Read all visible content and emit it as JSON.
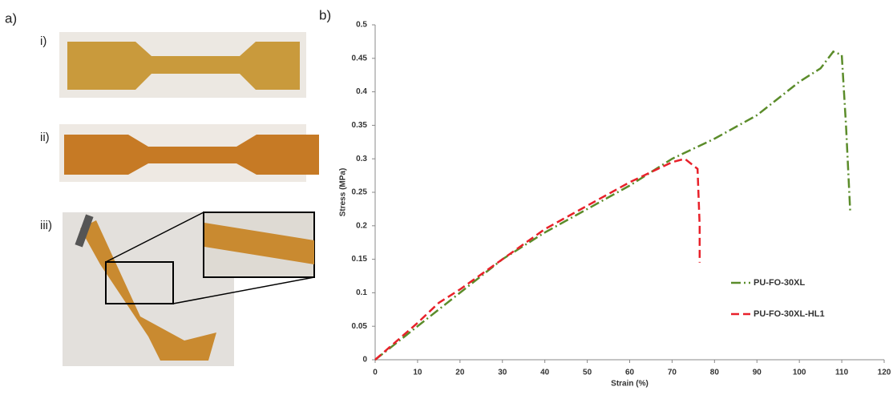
{
  "figure": {
    "panel_a": "a)",
    "panel_b": "b)",
    "sublabels": [
      "i)",
      "ii)",
      "iii)"
    ]
  },
  "chart_data": {
    "type": "line",
    "x_label": "Strain (%)",
    "y_label": "Stress (MPa)",
    "xlim": [
      0,
      120
    ],
    "xticks": [
      0,
      10,
      20,
      30,
      40,
      50,
      60,
      70,
      80,
      90,
      100,
      110,
      120
    ],
    "ylim": [
      0,
      0.5
    ],
    "yticks": [
      0,
      0.05,
      0.1,
      0.15,
      0.2,
      0.25,
      0.3,
      0.35,
      0.4,
      0.45,
      0.5
    ],
    "legend": "lower right",
    "series": [
      {
        "name": "PU-FO-30XL",
        "color": "#5b8c2a",
        "dash": "dashdot",
        "x": [
          0,
          10,
          20,
          30,
          40,
          50,
          60,
          70,
          80,
          90,
          100,
          105,
          108,
          110,
          111,
          112
        ],
        "values": [
          0,
          0.05,
          0.1,
          0.15,
          0.19,
          0.225,
          0.26,
          0.3,
          0.33,
          0.365,
          0.415,
          0.435,
          0.46,
          0.455,
          0.35,
          0.22
        ]
      },
      {
        "name": "PU-FO-30XL-HL1",
        "color": "#e8212a",
        "dash": "dashed",
        "x": [
          0,
          10,
          15,
          20,
          30,
          40,
          50,
          60,
          70,
          73,
          76,
          76.5,
          76.5
        ],
        "values": [
          0,
          0.055,
          0.085,
          0.105,
          0.15,
          0.195,
          0.23,
          0.265,
          0.295,
          0.3,
          0.285,
          0.2,
          0.145
        ]
      }
    ]
  }
}
